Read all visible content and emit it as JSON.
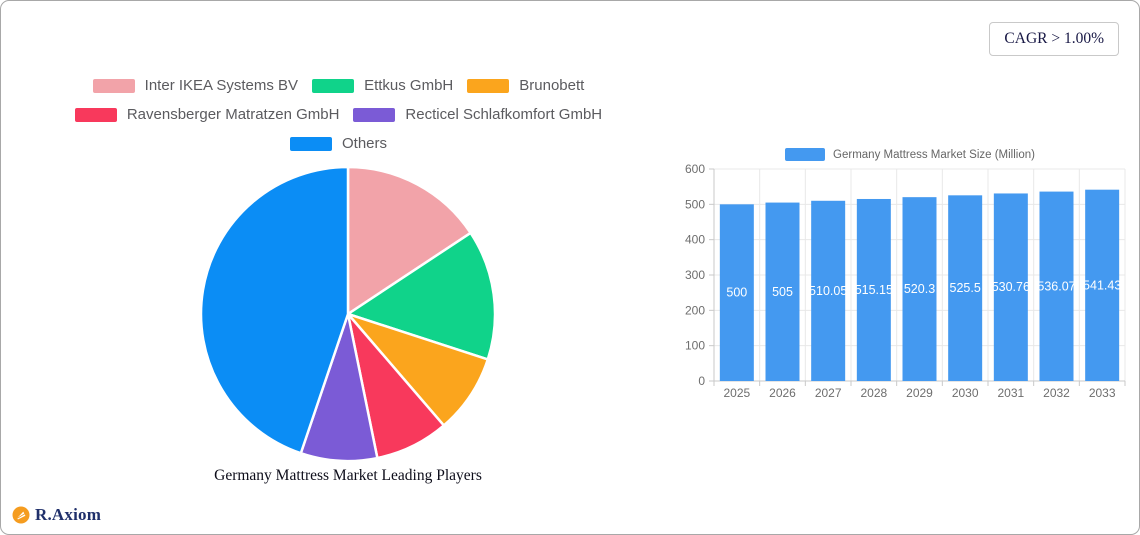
{
  "badge": {
    "cagr_label": "CAGR > 1.00%"
  },
  "branding": {
    "logo_text": "R.Axiom",
    "logo_icon": "orange-circle-pen-icon",
    "logo_color": "#f59c1f"
  },
  "chart_data": [
    {
      "type": "pie",
      "title": "Germany Mattress Market Leading Players",
      "legend_position": "top",
      "legend_rows": [
        [
          0,
          1,
          2
        ],
        [
          3,
          4
        ],
        [
          5
        ]
      ],
      "series": [
        {
          "name": "Inter IKEA Systems BV",
          "value": 15.7,
          "color": "#F2A3A9"
        },
        {
          "name": "Ettkus GmbH",
          "value": 14.3,
          "color": "#10D38A"
        },
        {
          "name": "Brunobett",
          "value": 8.7,
          "color": "#FBA51D"
        },
        {
          "name": "Ravensberger Matratzen GmbH",
          "value": 8.1,
          "color": "#F8395C"
        },
        {
          "name": "Recticel Schlafkomfort GmbH",
          "value": 8.4,
          "color": "#7B5BD6"
        },
        {
          "name": "Others",
          "value": 44.8,
          "color": "#0B8DF5"
        }
      ],
      "start_angle_deg": 0,
      "direction": "clockwise",
      "slice_border_color": "#ffffff"
    },
    {
      "type": "bar",
      "legend": "Germany Mattress Market Size (Million)",
      "categories": [
        "2025",
        "2026",
        "2027",
        "2028",
        "2029",
        "2030",
        "2031",
        "2032",
        "2033"
      ],
      "values": [
        500,
        505,
        510.05,
        515.15,
        520.3,
        525.5,
        530.76,
        536.07,
        541.43
      ],
      "value_labels": [
        "500",
        "505",
        "510.05",
        "515.15",
        "520.3",
        "525.5",
        "530.76",
        "536.07",
        "541.43"
      ],
      "bar_color": "#4499F0",
      "value_label_color": "#ffffff",
      "axis_label_color": "#6e6e6e",
      "axis_line_color": "#c9c9c9",
      "grid_line_color": "#e8e8e8",
      "xlabel": "",
      "ylabel": "",
      "ylim": [
        0,
        600
      ],
      "yticks": [
        0,
        100,
        200,
        300,
        400,
        500,
        600
      ],
      "grid": true,
      "legend_swatch_color": "#4499F0"
    }
  ]
}
